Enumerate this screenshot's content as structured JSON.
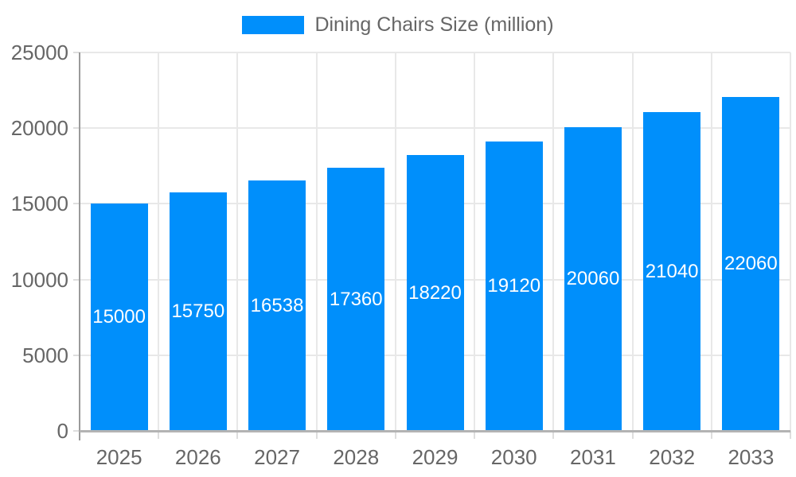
{
  "colors": {
    "bar-color": "#008FFB",
    "grid-color": "#e8e8e8",
    "tick-color": "#dedede",
    "axis-color": "#9a9a9a",
    "baseline-color": "#b3b3b3",
    "label-color": "#666666",
    "datalabel-color": "#ffffff"
  },
  "legend": {
    "label": "Dining Chairs Size (million)"
  },
  "chart_data": {
    "type": "bar",
    "title": "Dining Chairs Size (million)",
    "series_name": "Dining Chairs Size (million)",
    "categories": [
      "2025",
      "2026",
      "2027",
      "2028",
      "2029",
      "2030",
      "2031",
      "2032",
      "2033"
    ],
    "values": [
      15000,
      15750,
      16538,
      17360,
      18220,
      19120,
      20060,
      21040,
      22060
    ],
    "data_labels": [
      "15000",
      "15750",
      "16538",
      "17360",
      "18220",
      "19120",
      "20060",
      "21040",
      "22060"
    ],
    "xlabel": "",
    "ylabel": "",
    "ylim": [
      0,
      25000
    ],
    "yticks": [
      0,
      5000,
      10000,
      15000,
      20000,
      25000
    ],
    "ytick_labels": [
      "0",
      "5000",
      "10000",
      "15000",
      "20000",
      "25000"
    ],
    "grid": true,
    "legend_position": "top"
  }
}
